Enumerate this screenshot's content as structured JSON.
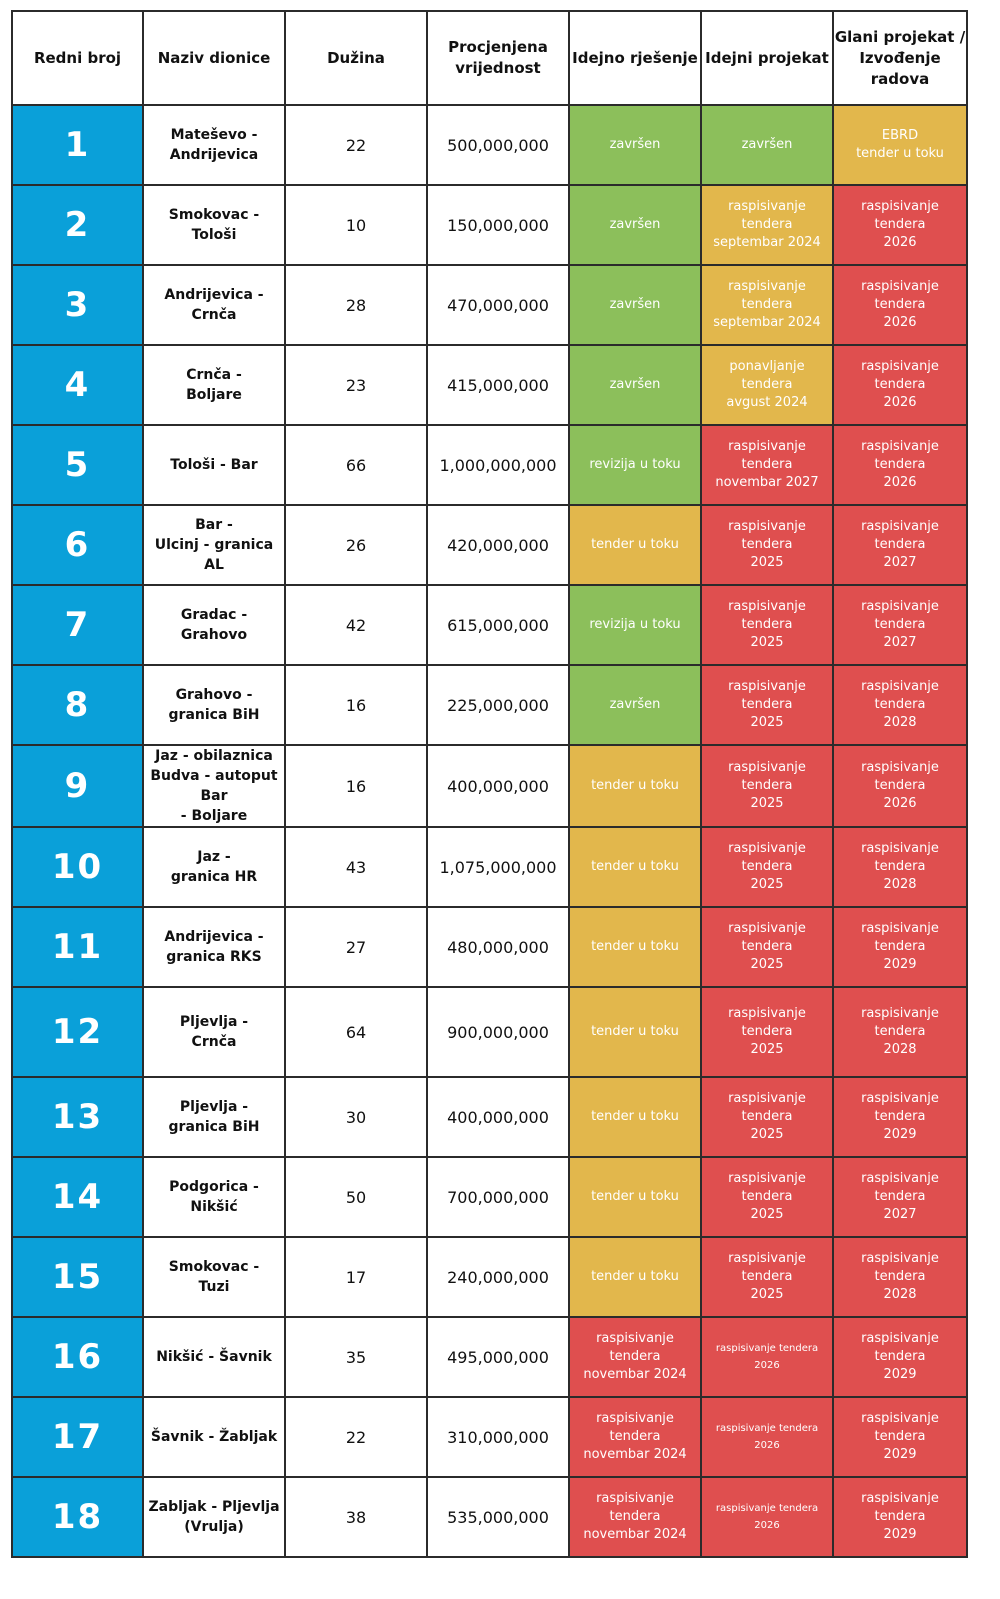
{
  "colors": {
    "number_bg": "#0aa0d9",
    "zavrsen": "#8cbf5b",
    "u_toku": "#e2b74c",
    "planirano": "#df4f4f"
  },
  "headers": [
    "Redni broj",
    "Naziv dionice",
    "Dužina",
    "Procjenjena\nvrijednost",
    "Idejno rješenje",
    "Idejni projekat",
    "Glani projekat /\nIzvođenje radova"
  ],
  "rows": [
    {
      "num": "1",
      "name": "Mateševo -\nAndrijevica",
      "len": "22",
      "val": "500,000,000",
      "s1": {
        "t": "završen",
        "c": "g"
      },
      "s2": {
        "t": "završen",
        "c": "g"
      },
      "s3": {
        "t": "EBRD\ntender u toku",
        "c": "y"
      }
    },
    {
      "num": "2",
      "name": "Smokovac -\nTološi",
      "len": "10",
      "val": "150,000,000",
      "s1": {
        "t": "završen",
        "c": "g"
      },
      "s2": {
        "t": "raspisivanje\ntendera\nseptembar 2024",
        "c": "y"
      },
      "s3": {
        "t": "raspisivanje\ntendera\n2026",
        "c": "r"
      }
    },
    {
      "num": "3",
      "name": "Andrijevica -\nCrnča",
      "len": "28",
      "val": "470,000,000",
      "s1": {
        "t": "završen",
        "c": "g"
      },
      "s2": {
        "t": "raspisivanje\ntendera\nseptembar 2024",
        "c": "y"
      },
      "s3": {
        "t": "raspisivanje\ntendera\n2026",
        "c": "r"
      }
    },
    {
      "num": "4",
      "name": "Crnča -\nBoljare",
      "len": "23",
      "val": "415,000,000",
      "s1": {
        "t": "završen",
        "c": "g"
      },
      "s2": {
        "t": "ponavljanje\ntendera\navgust 2024",
        "c": "y"
      },
      "s3": {
        "t": "raspisivanje\ntendera\n2026",
        "c": "r"
      }
    },
    {
      "num": "5",
      "name": "Tološi - Bar",
      "len": "66",
      "val": "1,000,000,000",
      "s1": {
        "t": "revizija u toku",
        "c": "g"
      },
      "s2": {
        "t": "raspisivanje\ntendera\nnovembar 2027",
        "c": "r"
      },
      "s3": {
        "t": "raspisivanje\ntendera\n2026",
        "c": "r"
      }
    },
    {
      "num": "6",
      "name": "Bar -\nUlcinj - granica AL",
      "len": "26",
      "val": "420,000,000",
      "s1": {
        "t": "tender u toku",
        "c": "y"
      },
      "s2": {
        "t": "raspisivanje\ntendera\n2025",
        "c": "r"
      },
      "s3": {
        "t": "raspisivanje\ntendera\n2027",
        "c": "r"
      }
    },
    {
      "num": "7",
      "name": "Gradac -\nGrahovo",
      "len": "42",
      "val": "615,000,000",
      "s1": {
        "t": "revizija u toku",
        "c": "g"
      },
      "s2": {
        "t": "raspisivanje\ntendera\n2025",
        "c": "r"
      },
      "s3": {
        "t": "raspisivanje\ntendera\n2027",
        "c": "r"
      }
    },
    {
      "num": "8",
      "name": "Grahovo -\ngranica BiH",
      "len": "16",
      "val": "225,000,000",
      "s1": {
        "t": "završen",
        "c": "g"
      },
      "s2": {
        "t": "raspisivanje\ntendera\n2025",
        "c": "r"
      },
      "s3": {
        "t": "raspisivanje\ntendera\n2028",
        "c": "r"
      }
    },
    {
      "num": "9",
      "name": "Jaz - obilaznica\nBudva - autoput Bar\n- Boljare",
      "len": "16",
      "val": "400,000,000",
      "s1": {
        "t": "tender u toku",
        "c": "y"
      },
      "s2": {
        "t": "raspisivanje\ntendera\n2025",
        "c": "r"
      },
      "s3": {
        "t": "raspisivanje\ntendera\n2026",
        "c": "r"
      }
    },
    {
      "num": "10",
      "name": "Jaz -\ngranica HR",
      "len": "43",
      "val": "1,075,000,000",
      "s1": {
        "t": "tender u toku",
        "c": "y"
      },
      "s2": {
        "t": "raspisivanje\ntendera\n2025",
        "c": "r"
      },
      "s3": {
        "t": "raspisivanje\ntendera\n2028",
        "c": "r"
      }
    },
    {
      "num": "11",
      "name": "Andrijevica -\ngranica RKS",
      "len": "27",
      "val": "480,000,000",
      "s1": {
        "t": "tender u toku",
        "c": "y"
      },
      "s2": {
        "t": "raspisivanje\ntendera\n2025",
        "c": "r"
      },
      "s3": {
        "t": "raspisivanje\ntendera\n2029",
        "c": "r"
      }
    },
    {
      "num": "12",
      "name": "Pljevlja -\nCrnča",
      "len": "64",
      "val": "900,000,000",
      "s1": {
        "t": "tender u toku",
        "c": "y"
      },
      "s2": {
        "t": "raspisivanje\ntendera\n2025",
        "c": "r"
      },
      "s3": {
        "t": "raspisivanje\ntendera\n2028",
        "c": "r"
      },
      "tall": true
    },
    {
      "num": "13",
      "name": "Pljevlja -\ngranica BiH",
      "len": "30",
      "val": "400,000,000",
      "s1": {
        "t": "tender u toku",
        "c": "y"
      },
      "s2": {
        "t": "raspisivanje\ntendera\n2025",
        "c": "r"
      },
      "s3": {
        "t": "raspisivanje\ntendera\n2029",
        "c": "r"
      }
    },
    {
      "num": "14",
      "name": "Podgorica -\nNikšić",
      "len": "50",
      "val": "700,000,000",
      "s1": {
        "t": "tender u toku",
        "c": "y"
      },
      "s2": {
        "t": "raspisivanje\ntendera\n2025",
        "c": "r"
      },
      "s3": {
        "t": "raspisivanje\ntendera\n2027",
        "c": "r"
      }
    },
    {
      "num": "15",
      "name": "Smokovac -\nTuzi",
      "len": "17",
      "val": "240,000,000",
      "s1": {
        "t": "tender u toku",
        "c": "y"
      },
      "s2": {
        "t": "raspisivanje\ntendera\n2025",
        "c": "r"
      },
      "s3": {
        "t": "raspisivanje\ntendera\n2028",
        "c": "r"
      }
    },
    {
      "num": "16",
      "name": "Nikšić - Šavnik",
      "len": "35",
      "val": "495,000,000",
      "s1": {
        "t": "raspisivanje\ntendera\nnovembar 2024",
        "c": "r"
      },
      "s2": {
        "t": "raspisivanje tendera\n2026",
        "c": "r",
        "small": true
      },
      "s3": {
        "t": "raspisivanje\ntendera\n2029",
        "c": "r"
      }
    },
    {
      "num": "17",
      "name": "Šavnik - Žabljak",
      "len": "22",
      "val": "310,000,000",
      "s1": {
        "t": "raspisivanje\ntendera\nnovembar 2024",
        "c": "r"
      },
      "s2": {
        "t": "raspisivanje tendera\n2026",
        "c": "r",
        "small": true
      },
      "s3": {
        "t": "raspisivanje\ntendera\n2029",
        "c": "r"
      }
    },
    {
      "num": "18",
      "name": "Zabljak - Pljevlja\n(Vrulja)",
      "len": "38",
      "val": "535,000,000",
      "s1": {
        "t": "raspisivanje\ntendera\nnovembar 2024",
        "c": "r"
      },
      "s2": {
        "t": "raspisivanje tendera\n2026",
        "c": "r",
        "small": true
      },
      "s3": {
        "t": "raspisivanje\ntendera\n2029",
        "c": "r"
      }
    }
  ]
}
